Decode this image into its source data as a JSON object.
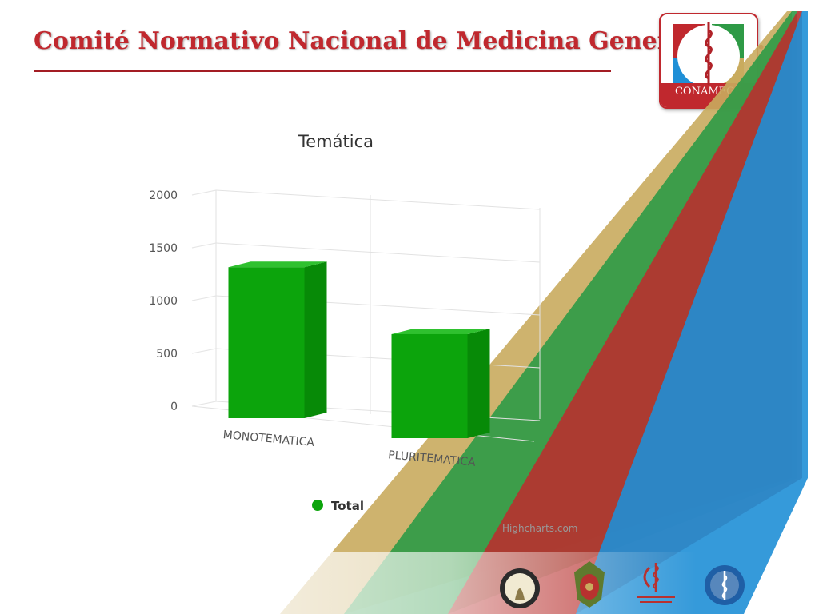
{
  "header": {
    "title": "Comité Normativo Nacional de Medicina General, A.C."
  },
  "logo": {
    "text": "CONAMEGE"
  },
  "chart_data": {
    "type": "bar",
    "title": "Temática",
    "categories": [
      "MONOTEMATICA",
      "PLURITEMATICA"
    ],
    "series": [
      {
        "name": "Total",
        "values": [
          1430,
          985
        ],
        "color": "#0ca40c"
      }
    ],
    "ylim": [
      0,
      2000
    ],
    "yticks": [
      0,
      500,
      1000,
      1500,
      2000
    ],
    "xlabel": "",
    "ylabel": "",
    "grid": true,
    "legend": "bottom-center",
    "credits": "Highcharts.com"
  },
  "colors": {
    "title_red": "#c0282e",
    "ribbon_gold": "#c9ab5e",
    "ribbon_green": "#2e9a46",
    "ribbon_red": "#b8312f",
    "ribbon_blue": "#1f8fd6"
  },
  "footer_logos": [
    "academia-nacional-de-medicina-seal",
    "military-crest-logo",
    "consejo-nacional-certificacion-logo",
    "blue-1907-seal"
  ]
}
